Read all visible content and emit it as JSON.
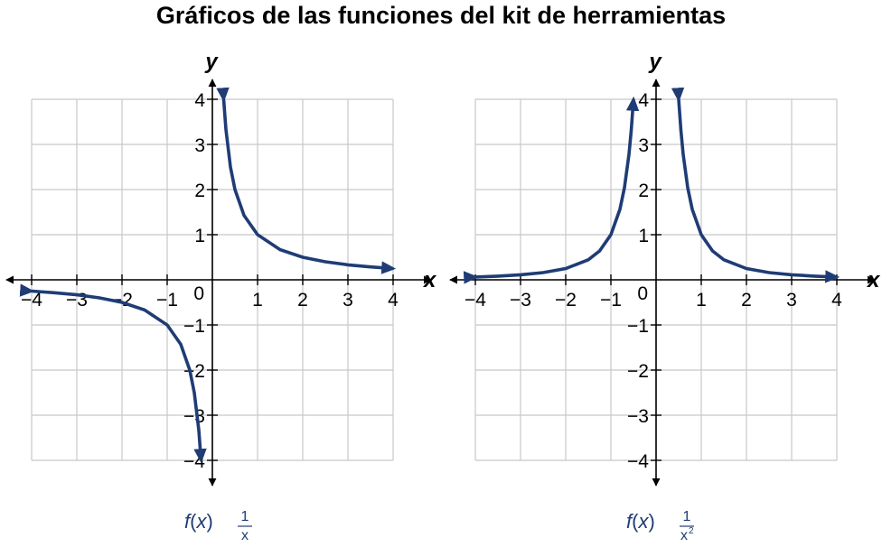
{
  "title": "Gráficos de las funciones del kit de herramientas",
  "colors": {
    "curve": "#1f3c75",
    "grid": "#c8c8c8",
    "axis": "#000000"
  },
  "chart_data": [
    {
      "type": "line",
      "function": "f(x) = 1/x",
      "xlabel": "x",
      "ylabel": "y",
      "xlim": [
        -4,
        4
      ],
      "ylim": [
        -4,
        4
      ],
      "grid": true,
      "x_ticks": [
        "−4",
        "−3",
        "−2",
        "−1",
        "1",
        "2",
        "3",
        "4"
      ],
      "y_ticks": [
        "4",
        "3",
        "2",
        "1",
        "−1",
        "−2",
        "−3",
        "−4"
      ],
      "origin_label": "0",
      "formula": {
        "fx": "f(x)",
        "numerator": "1",
        "denominator": "x",
        "exponent": ""
      },
      "series": [
        {
          "x": [
            0.25,
            0.3,
            0.4,
            0.5,
            0.7,
            1,
            1.5,
            2,
            2.5,
            3,
            3.5,
            4
          ],
          "y": [
            4,
            3.333,
            2.5,
            2,
            1.429,
            1,
            0.667,
            0.5,
            0.4,
            0.333,
            0.286,
            0.25
          ]
        },
        {
          "x": [
            -4,
            -3.5,
            -3,
            -2.5,
            -2,
            -1.5,
            -1,
            -0.7,
            -0.5,
            -0.4,
            -0.3,
            -0.25
          ],
          "y": [
            -0.25,
            -0.286,
            -0.333,
            -0.4,
            -0.5,
            -0.667,
            -1,
            -1.429,
            -2,
            -2.5,
            -3.333,
            -4
          ]
        }
      ]
    },
    {
      "type": "line",
      "function": "f(x) = 1/x²",
      "xlabel": "x",
      "ylabel": "y",
      "xlim": [
        -4,
        4
      ],
      "ylim": [
        -4,
        4
      ],
      "grid": true,
      "x_ticks": [
        "−4",
        "−3",
        "−2",
        "−1",
        "1",
        "2",
        "3",
        "4"
      ],
      "y_ticks": [
        "4",
        "3",
        "2",
        "1",
        "−1",
        "−2",
        "−3",
        "−4"
      ],
      "origin_label": "0",
      "formula": {
        "fx": "f(x)",
        "numerator": "1",
        "denominator": "x",
        "exponent": "2"
      },
      "series": [
        {
          "x": [
            0.5,
            0.55,
            0.6,
            0.7,
            0.8,
            1,
            1.25,
            1.5,
            2,
            2.5,
            3,
            3.5,
            4
          ],
          "y": [
            4,
            3.306,
            2.778,
            2.041,
            1.5625,
            1,
            0.64,
            0.444,
            0.25,
            0.16,
            0.111,
            0.082,
            0.0625
          ]
        },
        {
          "x": [
            -4,
            -3.5,
            -3,
            -2.5,
            -2,
            -1.5,
            -1.25,
            -1,
            -0.8,
            -0.7,
            -0.6,
            -0.55,
            -0.5
          ],
          "y": [
            0.0625,
            0.082,
            0.111,
            0.16,
            0.25,
            0.444,
            0.64,
            1,
            1.5625,
            2.041,
            2.778,
            3.306,
            4
          ]
        }
      ]
    }
  ]
}
